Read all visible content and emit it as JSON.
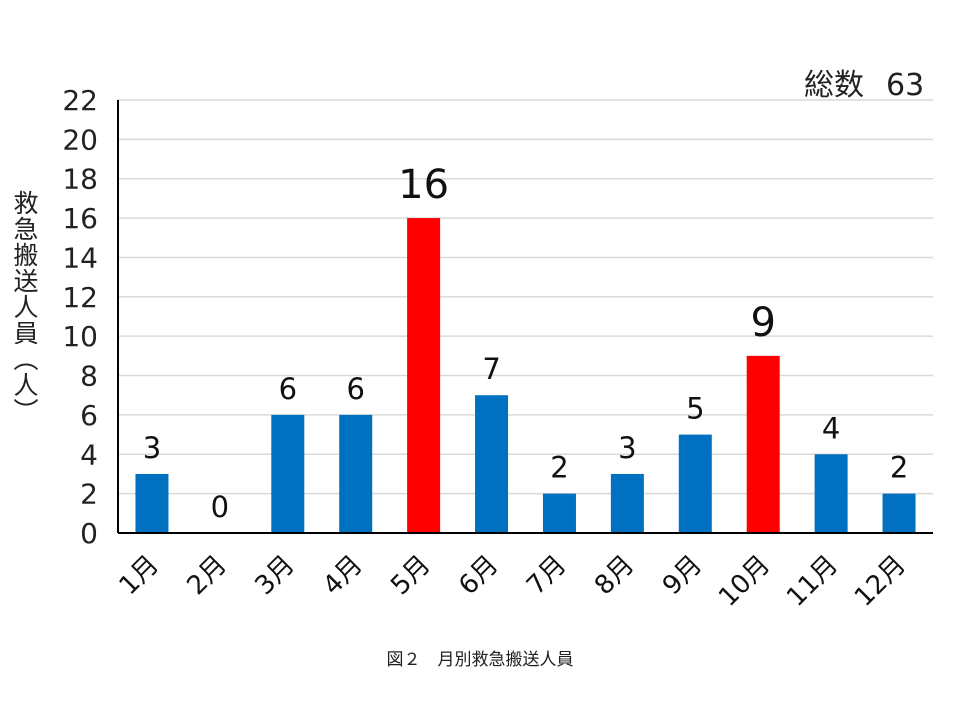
{
  "total": {
    "label": "総数",
    "value": "63"
  },
  "caption": "図２　月別救急搬送人員",
  "colors": {
    "normal": "#0070c0",
    "highlight": "#ff0000",
    "grid": "#d9d9d9",
    "axis": "#000000"
  },
  "chart_data": {
    "type": "bar",
    "title": "",
    "ylabel": "救急搬送人員（人）",
    "xlabel": "",
    "ylim": [
      0,
      22
    ],
    "yticks": [
      0,
      2,
      4,
      6,
      8,
      10,
      12,
      14,
      16,
      18,
      20,
      22
    ],
    "grid": true,
    "categories": [
      "1月",
      "2月",
      "3月",
      "4月",
      "5月",
      "6月",
      "7月",
      "8月",
      "9月",
      "10月",
      "11月",
      "12月"
    ],
    "values": [
      3,
      0,
      6,
      6,
      16,
      7,
      2,
      3,
      5,
      9,
      4,
      2
    ],
    "highlighted": [
      "5月",
      "10月"
    ]
  }
}
